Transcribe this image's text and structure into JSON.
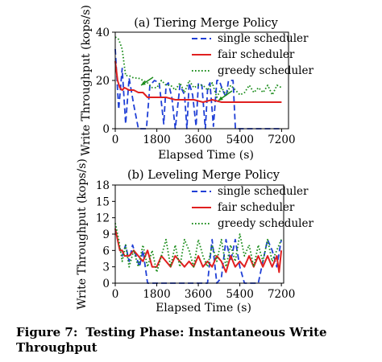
{
  "chart_data": [
    {
      "type": "line",
      "title": "(a) Tiering Merge Policy",
      "xlabel": "Elapsed Time (s)",
      "ylabel": "Write Throughput (kops/s)",
      "xlim": [
        0,
        7500
      ],
      "ylim": [
        0,
        40
      ],
      "xticks": [
        0,
        1800,
        3600,
        5400,
        7200
      ],
      "yticks": [
        0,
        20,
        40
      ],
      "legend_position": "top-right",
      "annotations": [
        "arrow",
        "arrow"
      ],
      "series": [
        {
          "name": "single scheduler",
          "color": "#1f3fd6",
          "dash": "dashed",
          "x": [
            0,
            150,
            300,
            450,
            600,
            800,
            1000,
            1200,
            1350,
            1500,
            1700,
            1900,
            2100,
            2200,
            2300,
            2450,
            2600,
            2800,
            3000,
            3100,
            3200,
            3350,
            3500,
            3600,
            3750,
            3900,
            4000,
            4100,
            4250,
            4400,
            4500,
            4650,
            4800,
            4900,
            5100,
            5200,
            5300,
            5400,
            5600,
            5800,
            6000,
            6200,
            6400,
            6600,
            6800,
            7000,
            7200
          ],
          "y": [
            33,
            8,
            25,
            2,
            21,
            10,
            0,
            0,
            0,
            18,
            20,
            19,
            2,
            18,
            19,
            13,
            0,
            18,
            14,
            0,
            19,
            14,
            1,
            19,
            18,
            0,
            17,
            19,
            1,
            20,
            20,
            16,
            13,
            20,
            20,
            0,
            0,
            0,
            0,
            0,
            0,
            0,
            0,
            0,
            0,
            0,
            0
          ]
        },
        {
          "name": "fair scheduler",
          "color": "#e02020",
          "dash": "solid",
          "x": [
            0,
            100,
            200,
            300,
            400,
            600,
            800,
            1000,
            1200,
            1400,
            1600,
            1800,
            2200,
            2600,
            3000,
            3400,
            3800,
            4200,
            4600,
            5000,
            5400,
            5800,
            6200,
            6600,
            7000,
            7200
          ],
          "y": [
            28,
            20,
            17,
            16,
            17,
            16,
            16,
            15,
            15,
            13,
            13,
            13,
            13,
            12,
            12,
            12,
            11,
            12,
            11,
            11,
            11,
            11,
            11,
            11,
            11,
            11
          ]
        },
        {
          "name": "greedy scheduler",
          "color": "#1a8c1a",
          "dash": "dotted",
          "x": [
            0,
            150,
            300,
            450,
            600,
            800,
            1000,
            1200,
            1400,
            1600,
            1800,
            2000,
            2200,
            2400,
            2600,
            2800,
            3000,
            3200,
            3400,
            3600,
            3800,
            4000,
            4200,
            4400,
            4600,
            4800,
            5000,
            5200,
            5400,
            5600,
            5800,
            6000,
            6200,
            6400,
            6600,
            6800,
            7000,
            7200
          ],
          "y": [
            38,
            37,
            33,
            22,
            22,
            21,
            21,
            20,
            19,
            17,
            17,
            20,
            18,
            18,
            16,
            19,
            15,
            20,
            17,
            18,
            18,
            16,
            19,
            13,
            17,
            14,
            18,
            16,
            14,
            15,
            18,
            15,
            17,
            15,
            18,
            14,
            18,
            17
          ]
        }
      ]
    },
    {
      "type": "line",
      "title": "(b) Leveling Merge Policy",
      "xlabel": "Elapsed Time (s)",
      "ylabel": "Write Throughput (kops/s)",
      "xlim": [
        0,
        7300
      ],
      "ylim": [
        0,
        18
      ],
      "xticks": [
        0,
        1800,
        3600,
        5400,
        7200
      ],
      "yticks": [
        0,
        3,
        6,
        9,
        12,
        15,
        18
      ],
      "legend_position": "top-right",
      "series": [
        {
          "name": "single scheduler",
          "color": "#1f3fd6",
          "dash": "dashed",
          "x": [
            0,
            150,
            300,
            450,
            600,
            750,
            900,
            1050,
            1200,
            1400,
            1600,
            1800,
            2000,
            2200,
            2400,
            2600,
            2800,
            3000,
            3200,
            3400,
            3600,
            3800,
            4000,
            4200,
            4400,
            4600,
            4800,
            5000,
            5200,
            5400,
            5600,
            5800,
            6000,
            6200,
            6400,
            6600,
            6800,
            7000,
            7200
          ],
          "y": [
            10,
            7,
            5,
            7,
            4,
            7,
            5,
            3,
            6,
            0,
            0,
            0,
            0,
            0,
            0,
            0,
            0,
            0,
            0,
            0,
            0,
            0,
            0,
            8,
            0,
            1,
            8,
            4,
            8,
            3,
            0,
            0,
            0,
            0,
            4,
            8,
            6,
            3,
            8
          ]
        },
        {
          "name": "fair scheduler",
          "color": "#e02020",
          "dash": "solid",
          "x": [
            0,
            100,
            200,
            300,
            400,
            600,
            800,
            1000,
            1200,
            1400,
            1600,
            1800,
            2000,
            2200,
            2400,
            2600,
            2800,
            3000,
            3200,
            3400,
            3600,
            3800,
            4000,
            4200,
            4400,
            4600,
            4800,
            5000,
            5200,
            5400,
            5600,
            5800,
            6000,
            6200,
            6400,
            6600,
            6800,
            7000,
            7100,
            7200
          ],
          "y": [
            10,
            8,
            6,
            6,
            5,
            5,
            6,
            5,
            4,
            6,
            3,
            3,
            5,
            4,
            3,
            5,
            4,
            3,
            4,
            3,
            5,
            3,
            4,
            3,
            5,
            4,
            2,
            5,
            3,
            4,
            3,
            5,
            3,
            5,
            3,
            5,
            3,
            5,
            2,
            6
          ]
        },
        {
          "name": "greedy scheduler",
          "color": "#1a8c1a",
          "dash": "dotted",
          "x": [
            0,
            150,
            300,
            450,
            600,
            800,
            1000,
            1200,
            1400,
            1600,
            1800,
            2000,
            2200,
            2400,
            2600,
            2800,
            3000,
            3200,
            3400,
            3600,
            3800,
            4000,
            4200,
            4400,
            4600,
            4800,
            5000,
            5200,
            5400,
            5600,
            5800,
            6000,
            6200,
            6400,
            6600,
            6800,
            7000,
            7200
          ],
          "y": [
            11,
            8,
            4,
            7,
            3,
            6,
            3,
            7,
            3,
            6,
            2,
            5,
            8,
            3,
            7,
            3,
            8,
            6,
            3,
            8,
            5,
            3,
            7,
            4,
            8,
            3,
            7,
            4,
            9,
            5,
            7,
            3,
            7,
            4,
            8,
            4,
            6,
            8
          ]
        }
      ]
    }
  ],
  "caption": {
    "label": "Figure 7:",
    "text": "Testing Phase: Instantaneous Write Throughput"
  }
}
